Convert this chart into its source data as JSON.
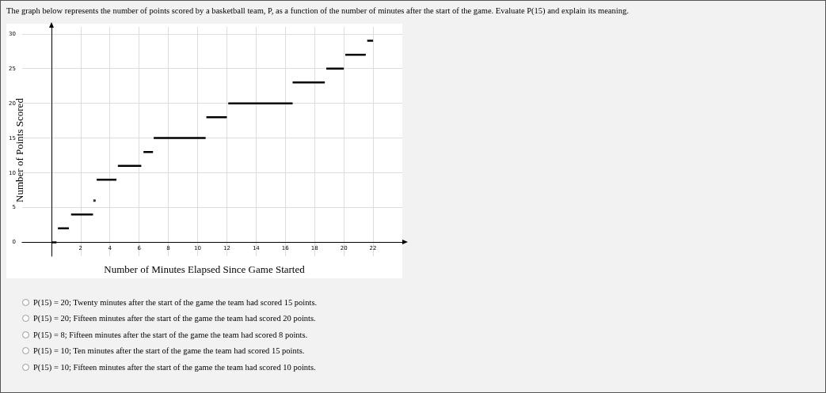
{
  "chart_data": {
    "type": "line",
    "title": "The graph below represents the number of points scored by a basketball team, P, as a function of the number of minutes after the start of the game. Evaluate P(15) and explain its meaning.",
    "xlabel": "Number of Minutes Elapsed Since Game Started",
    "ylabel": "Number of Points Scored",
    "annotations": [
      "P(15) = 20; Twenty minutes after the start of the game the team had scored 15 points.",
      "P(15) = 20; Fifteen minutes after the start of the game the team had scored 20 points.",
      "P(15) = 8; Fifteen minutes after the start of the game the team had scored 8 points.",
      "P(15) = 10; Ten minutes after the start of the game the team had scored 15 points.",
      "P(15) = 10; Fifteen minutes after the start of the game the team had scored 10 points."
    ],
    "xlim": [
      -2,
      24
    ],
    "xticks": [
      2,
      4,
      6,
      8,
      10,
      12,
      14,
      16,
      18,
      20,
      22
    ],
    "ylim": [
      -2,
      31
    ],
    "yticks": [
      0,
      5,
      10,
      15,
      20,
      25,
      30
    ],
    "grid": true,
    "marker": "none",
    "line_style": "solid",
    "series": [
      {
        "x": [
          0,
          0.35
        ],
        "values": [
          0,
          0
        ],
        "color": "#000000"
      },
      {
        "x": [
          0.45,
          1.2
        ],
        "values": [
          2,
          2
        ],
        "color": "#000000"
      },
      {
        "x": [
          1.35,
          2.85
        ],
        "values": [
          4,
          4
        ],
        "color": "#000000"
      },
      {
        "type": "scatter",
        "marker": "square",
        "x": [
          2.95
        ],
        "values": [
          6
        ],
        "color": "#000000"
      },
      {
        "x": [
          3.1,
          4.45
        ],
        "values": [
          9,
          9
        ],
        "color": "#000000"
      },
      {
        "x": [
          4.55,
          6.15
        ],
        "values": [
          11,
          11
        ],
        "color": "#000000"
      },
      {
        "x": [
          6.3,
          6.95
        ],
        "values": [
          13,
          13
        ],
        "color": "#000000"
      },
      {
        "x": [
          7.0,
          10.55
        ],
        "values": [
          15,
          15
        ],
        "color": "#000000"
      },
      {
        "x": [
          10.6,
          12.0
        ],
        "values": [
          18,
          18
        ],
        "color": "#000000"
      },
      {
        "x": [
          12.1,
          16.5
        ],
        "values": [
          20,
          20
        ],
        "color": "#000000"
      },
      {
        "x": [
          16.5,
          18.7
        ],
        "values": [
          23,
          23
        ],
        "color": "#000000"
      },
      {
        "x": [
          18.8,
          20.0
        ],
        "values": [
          25,
          25
        ],
        "color": "#000000"
      },
      {
        "x": [
          20.1,
          21.5
        ],
        "values": [
          27,
          27
        ],
        "color": "#000000"
      },
      {
        "x": [
          21.6,
          22.0
        ],
        "values": [
          29,
          29
        ],
        "color": "#000000"
      }
    ]
  }
}
